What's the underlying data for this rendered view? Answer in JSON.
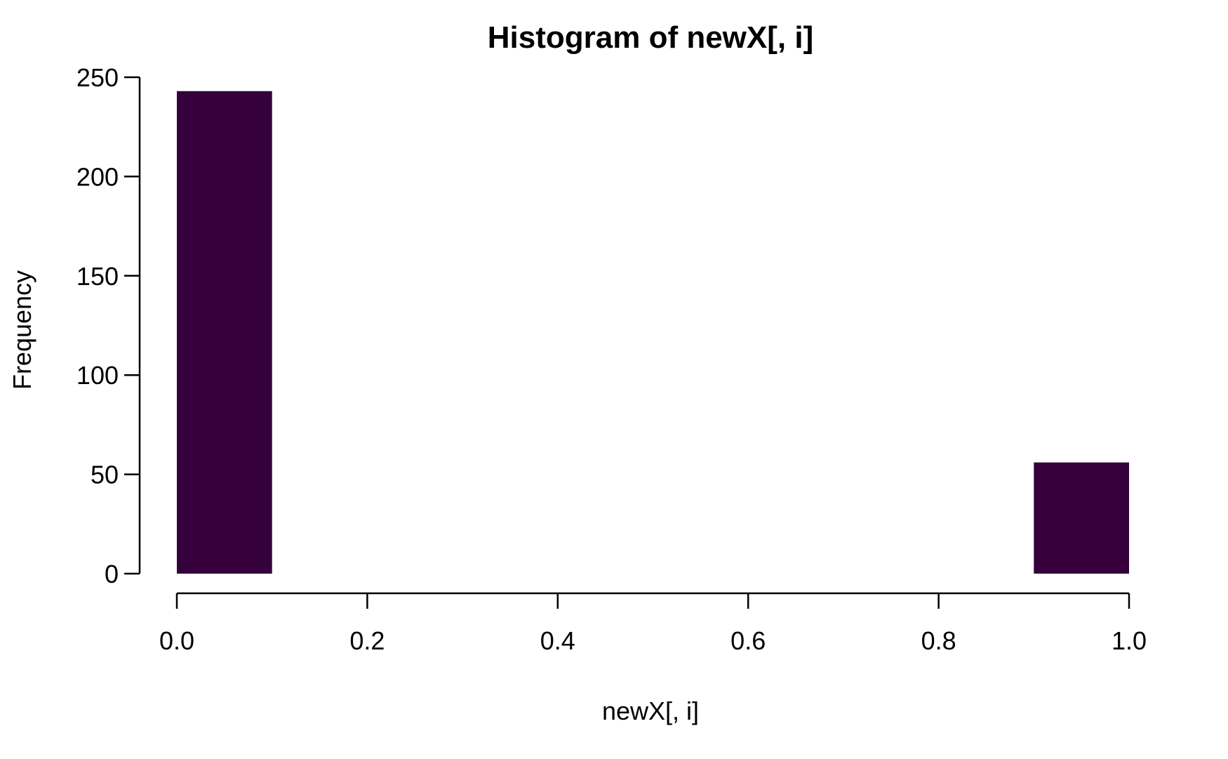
{
  "chart_data": {
    "type": "bar",
    "title": "Histogram of newX[, i]",
    "xlabel": "newX[, i]",
    "ylabel": "Frequency",
    "xlim": [
      0,
      1
    ],
    "ylim": [
      0,
      250
    ],
    "x_ticks": [
      "0.0",
      "0.2",
      "0.4",
      "0.6",
      "0.8",
      "1.0"
    ],
    "x_tick_values": [
      0,
      0.2,
      0.4,
      0.6,
      0.8,
      1.0
    ],
    "y_ticks": [
      "0",
      "50",
      "100",
      "150",
      "200",
      "250"
    ],
    "y_tick_values": [
      0,
      50,
      100,
      150,
      200,
      250
    ],
    "bins": [
      {
        "start": 0.0,
        "end": 0.1,
        "count": 243
      },
      {
        "start": 0.1,
        "end": 0.2,
        "count": 0
      },
      {
        "start": 0.2,
        "end": 0.3,
        "count": 0
      },
      {
        "start": 0.3,
        "end": 0.4,
        "count": 0
      },
      {
        "start": 0.4,
        "end": 0.5,
        "count": 0
      },
      {
        "start": 0.5,
        "end": 0.6,
        "count": 0
      },
      {
        "start": 0.6,
        "end": 0.7,
        "count": 0
      },
      {
        "start": 0.7,
        "end": 0.8,
        "count": 0
      },
      {
        "start": 0.8,
        "end": 0.9,
        "count": 0
      },
      {
        "start": 0.9,
        "end": 1.0,
        "count": 56
      }
    ],
    "bar_color": "#35003C",
    "grid": false,
    "legend": "none"
  }
}
